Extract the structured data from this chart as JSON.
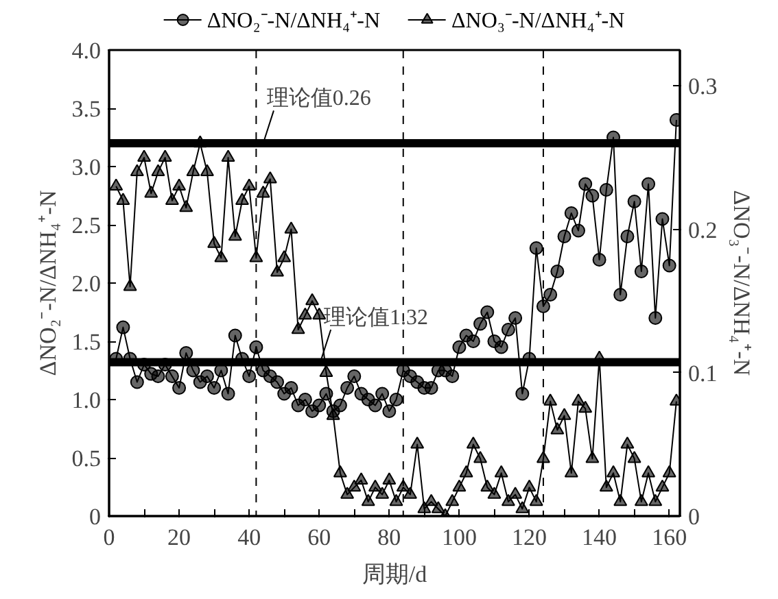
{
  "chart_data": {
    "type": "line",
    "xlabel": "周期/d",
    "ylabel": "ΔNO₂⁻-N/ΔNH₄⁺-N",
    "y2label": "ΔNO₃⁻-N/ΔNH₄⁺-N",
    "x": [
      2,
      4,
      6,
      8,
      10,
      12,
      14,
      16,
      18,
      20,
      22,
      24,
      26,
      28,
      30,
      32,
      34,
      36,
      38,
      40,
      42,
      44,
      46,
      48,
      50,
      52,
      54,
      56,
      58,
      60,
      62,
      64,
      66,
      68,
      70,
      72,
      74,
      76,
      78,
      80,
      82,
      84,
      86,
      88,
      90,
      92,
      94,
      96,
      98,
      100,
      102,
      104,
      106,
      108,
      110,
      112,
      114,
      116,
      118,
      120,
      122,
      124,
      126,
      128,
      130,
      132,
      134,
      136,
      138,
      140,
      142,
      144,
      146,
      148,
      150,
      152,
      154,
      156,
      158,
      160,
      162
    ],
    "series": [
      {
        "name": "ΔNO₂⁻-N/ΔNH₄⁺-N",
        "color": "#000000",
        "marker": "circle",
        "values": [
          1.35,
          1.62,
          1.35,
          1.15,
          1.3,
          1.22,
          1.2,
          1.3,
          1.2,
          1.1,
          1.4,
          1.25,
          1.15,
          1.2,
          1.1,
          1.25,
          1.05,
          1.55,
          1.35,
          1.2,
          1.45,
          1.25,
          1.2,
          1.15,
          1.05,
          1.1,
          0.95,
          1.0,
          0.9,
          0.95,
          1.05,
          0.9,
          0.95,
          1.1,
          1.2,
          1.05,
          1.0,
          0.95,
          1.05,
          0.9,
          1.0,
          1.25,
          1.2,
          1.15,
          1.1,
          1.1,
          1.25,
          1.25,
          1.2,
          1.45,
          1.55,
          1.5,
          1.65,
          1.75,
          1.5,
          1.45,
          1.6,
          1.7,
          1.05,
          1.35,
          2.3,
          1.8,
          1.9,
          2.1,
          2.4,
          2.6,
          2.45,
          2.85,
          2.75,
          2.2,
          2.8,
          3.25,
          1.9,
          2.4,
          2.7,
          2.1,
          2.85,
          1.7,
          2.55,
          2.15,
          3.4
        ]
      },
      {
        "name": "ΔNO₃⁻-N/ΔNH₄⁺-N",
        "color": "#000000",
        "marker": "triangle",
        "axis": "y2",
        "values": [
          0.23,
          0.22,
          0.16,
          0.24,
          0.25,
          0.225,
          0.24,
          0.25,
          0.22,
          0.23,
          0.215,
          0.24,
          0.26,
          0.24,
          0.19,
          0.18,
          0.25,
          0.195,
          0.22,
          0.23,
          0.18,
          0.225,
          0.235,
          0.17,
          0.18,
          0.2,
          0.13,
          0.14,
          0.15,
          0.14,
          0.1,
          0.07,
          0.03,
          0.015,
          0.02,
          0.025,
          0.01,
          0.02,
          0.015,
          0.025,
          0.01,
          0.02,
          0.015,
          0.05,
          0.005,
          0.01,
          0.005,
          0.0,
          0.01,
          0.02,
          0.03,
          0.05,
          0.04,
          0.02,
          0.015,
          0.03,
          0.01,
          0.015,
          0.005,
          0.02,
          0.01,
          0.04,
          0.08,
          0.06,
          0.07,
          0.03,
          0.08,
          0.075,
          0.04,
          0.11,
          0.02,
          0.03,
          0.01,
          0.05,
          0.04,
          0.01,
          0.03,
          0.01,
          0.02,
          0.03,
          0.08
        ]
      }
    ],
    "xlim": [
      0,
      163
    ],
    "xticks": [
      0,
      {
        "value": 10,
        "label": null
      },
      20,
      {
        "value": 30,
        "label": null
      },
      40,
      {
        "value": 50,
        "label": null
      },
      60,
      {
        "value": 70,
        "label": null
      },
      80,
      {
        "value": 90,
        "label": null
      },
      100,
      {
        "value": 110,
        "label": null
      },
      120,
      {
        "value": 130,
        "label": null
      },
      140,
      {
        "value": 150,
        "label": null
      },
      160
    ],
    "ylim": [
      0,
      4.0
    ],
    "yticks": [
      0,
      {
        "value": 0.5,
        "label": "0.5"
      },
      {
        "value": 1,
        "label": "1.0"
      },
      {
        "value": 1.5,
        "label": "1.5"
      },
      {
        "value": 2,
        "label": "2.0"
      },
      {
        "value": 2.5,
        "label": "2.5"
      },
      {
        "value": 3,
        "label": "3.0"
      },
      {
        "value": 3.5,
        "label": "3.5"
      },
      {
        "value": 4,
        "label": "4.0"
      }
    ],
    "y2lim": [
      0,
      0.325
    ],
    "y2ticks": [
      0,
      0.1,
      0.2,
      0.3
    ],
    "ref_lines": [
      {
        "axis": "y",
        "value": 1.32,
        "label": "理论值1.32",
        "color": "#000000",
        "line_style": "solid"
      },
      {
        "axis": "y2",
        "value": 0.26,
        "label": "理论值0.26",
        "color": "#000000",
        "line_style": "solid"
      },
      {
        "axis": "x",
        "value": 42,
        "color": "#000000",
        "line_style": "dashed"
      },
      {
        "axis": "x",
        "value": 84,
        "color": "#000000",
        "line_style": "dashed"
      },
      {
        "axis": "x",
        "value": 124,
        "color": "#000000",
        "line_style": "dashed"
      }
    ],
    "grid": false,
    "legend": "top",
    "line_style": "solid"
  }
}
